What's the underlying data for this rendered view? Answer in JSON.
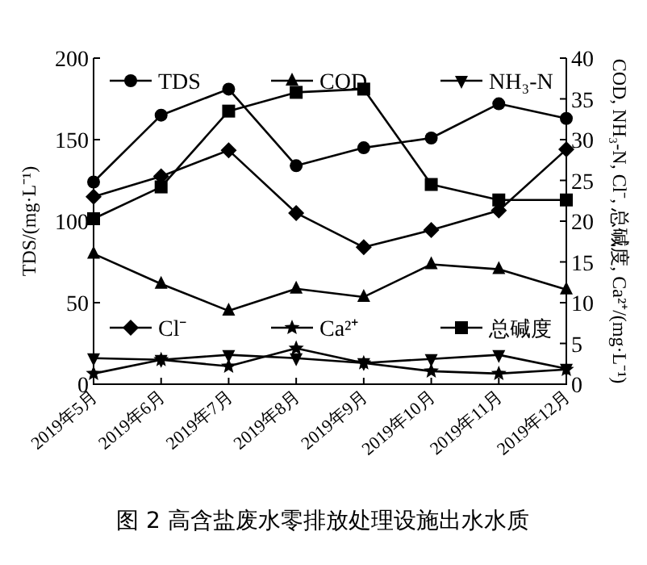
{
  "chart_data": {
    "type": "line",
    "title": "图 2 高含盐废水零排放处理设施出水水质",
    "categories": [
      "2019年5月",
      "2019年6月",
      "2019年7月",
      "2019年8月",
      "2019年9月",
      "2019年10月",
      "2019年11月",
      "2019年12月"
    ],
    "series": [
      {
        "name": "TDS",
        "color": "#000000",
        "marker": "circle",
        "values": [
          124,
          165,
          181,
          134,
          145,
          151,
          172,
          163
        ]
      },
      {
        "name": "COD",
        "color": "#000000",
        "marker": "triangle",
        "axis": "y2",
        "values": [
          16.0,
          12.3,
          9.0,
          11.7,
          10.7,
          14.7,
          14.1,
          11.6
        ]
      },
      {
        "name": "NH₃-N",
        "color": "#000000",
        "marker": "triangle_down",
        "axis": "y2",
        "values": [
          3.2,
          3.0,
          3.6,
          3.2,
          2.6,
          3.1,
          3.6,
          1.9
        ]
      },
      {
        "name": "Cl⁻",
        "color": "#000000",
        "marker": "diamond",
        "axis": "y2",
        "values": [
          23.0,
          25.5,
          28.7,
          21.0,
          16.8,
          18.9,
          21.3,
          28.8
        ]
      },
      {
        "name": "Ca²⁺",
        "color": "#000000",
        "marker": "star",
        "axis": "y2",
        "values": [
          1.3,
          3.0,
          2.2,
          4.4,
          2.6,
          1.6,
          1.3,
          1.8
        ]
      },
      {
        "name": "总碱度",
        "color": "#000000",
        "marker": "square",
        "axis": "y2",
        "values": [
          20.3,
          24.2,
          33.5,
          35.8,
          36.2,
          24.5,
          22.6,
          22.6
        ]
      }
    ],
    "ylabel": "TDS/(mg·L⁻¹)",
    "y2label": "COD, NH₃-N, Cl⁻, 总碱度, Ca²⁺/(mg·L⁻¹)",
    "ylim": [
      0,
      200
    ],
    "yticks": [
      0,
      50,
      100,
      150,
      200
    ],
    "y2lim": [
      0,
      40
    ],
    "y2ticks": [
      0,
      5,
      10,
      15,
      20,
      25,
      30,
      35,
      40
    ],
    "legend": "top",
    "line_style": "solid"
  }
}
